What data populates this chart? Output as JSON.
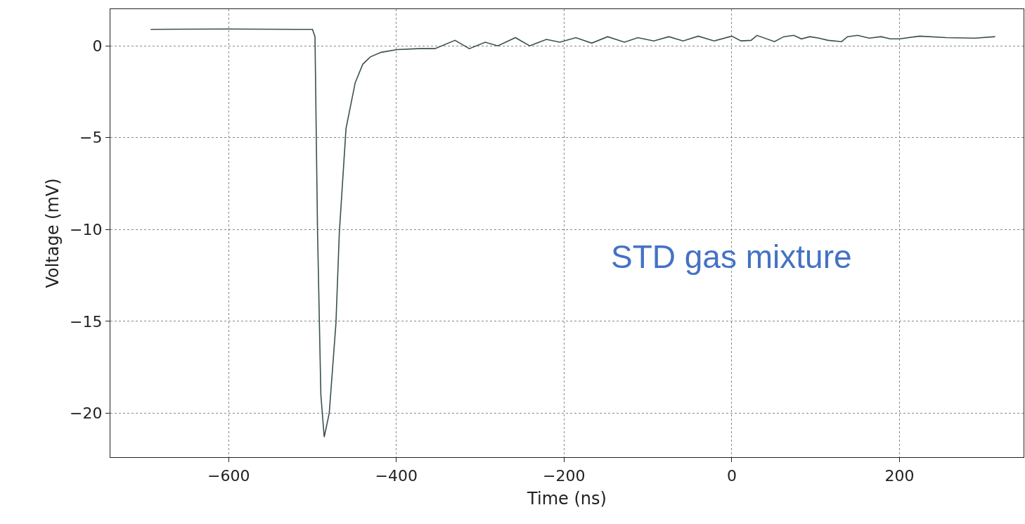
{
  "chart_data": {
    "type": "line",
    "xlabel": "Time (ns)",
    "ylabel": "Voltage (mV)",
    "annotations": [
      "STD gas mixture"
    ],
    "x": [
      -693,
      -600,
      -520,
      -500,
      -497,
      -494,
      -490,
      -486,
      -480,
      -472,
      -468,
      -460,
      -449,
      -440,
      -431,
      -418,
      -399,
      -373,
      -354,
      -330,
      -313,
      -294,
      -279,
      -258,
      -241,
      -221,
      -205,
      -186,
      -167,
      -148,
      -128,
      -112,
      -93,
      -75,
      -58,
      -40,
      -21,
      0,
      11,
      23,
      30,
      51,
      62,
      74,
      83,
      93,
      104,
      115,
      131,
      138,
      150,
      164,
      178,
      189,
      200,
      224,
      256,
      290,
      314
    ],
    "series": [
      {
        "color": "#3d4f4f",
        "values": [
          0.9,
          0.92,
          0.9,
          0.9,
          0.5,
          -10,
          -19,
          -21.3,
          -20,
          -15.1,
          -10.2,
          -4.5,
          -2.0,
          -1.0,
          -0.6,
          -0.35,
          -0.2,
          -0.15,
          -0.15,
          0.3,
          -0.15,
          0.2,
          0,
          0.45,
          0,
          0.35,
          0.2,
          0.45,
          0.15,
          0.5,
          0.2,
          0.45,
          0.27,
          0.5,
          0.27,
          0.53,
          0.27,
          0.53,
          0.27,
          0.3,
          0.57,
          0.23,
          0.5,
          0.57,
          0.38,
          0.5,
          0.42,
          0.3,
          0.23,
          0.5,
          0.57,
          0.42,
          0.5,
          0.38,
          0.38,
          0.53,
          0.45,
          0.42,
          0.5
        ]
      }
    ],
    "xlim": [
      -741,
      348
    ],
    "ylim": [
      -22.4,
      2.0
    ],
    "xticks": [
      -600,
      -400,
      -200,
      0,
      200
    ],
    "yticks": [
      {
        "value": 0,
        "label": "0"
      },
      {
        "value": -5,
        "label": "−5"
      },
      {
        "value": -10,
        "label": "−10"
      },
      {
        "value": -15,
        "label": "−15"
      },
      {
        "value": -20,
        "label": "−20"
      }
    ],
    "grid": true,
    "line_style": "solid",
    "marker": "none"
  }
}
